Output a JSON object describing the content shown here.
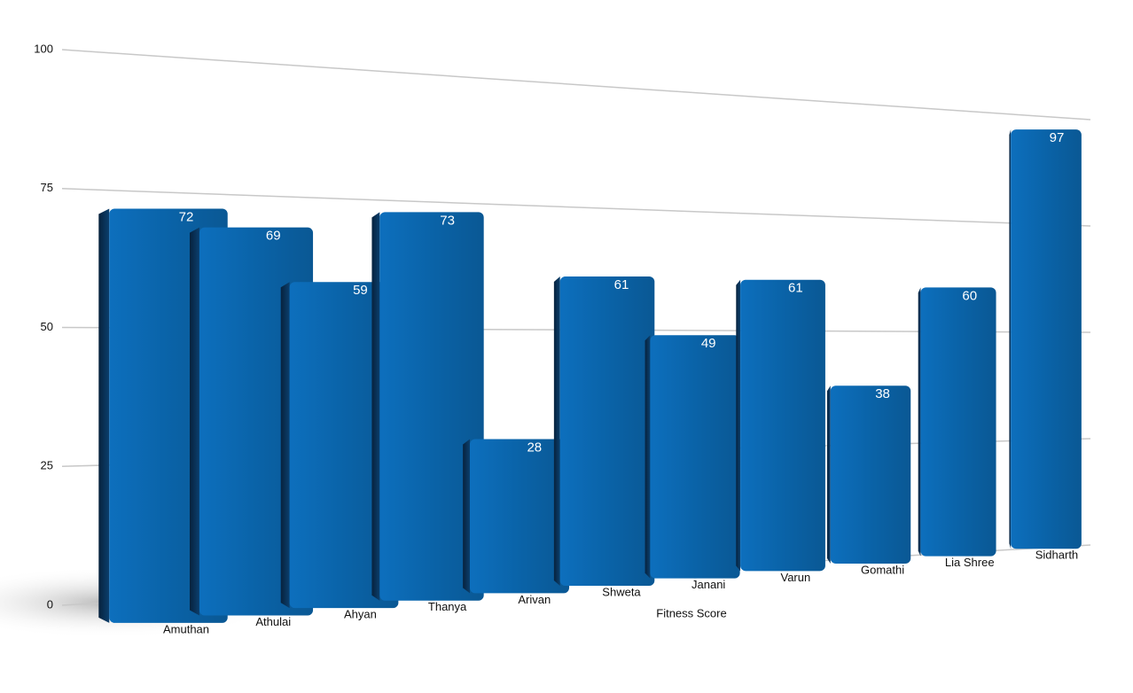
{
  "chart_data": {
    "type": "bar",
    "x_label": "Fitness Score",
    "categories": [
      "Amuthan",
      "Athulai",
      "Ahyan",
      "Thanya",
      "Arivan",
      "Shweta",
      "Janani",
      "Varun",
      "Gomathi",
      "Lia Shree",
      "Sidharth"
    ],
    "values": [
      72,
      69,
      59,
      73,
      28,
      61,
      49,
      61,
      38,
      60,
      97
    ],
    "color": "#0a63a8",
    "ylim": [
      0,
      100
    ],
    "yticks": [
      0,
      25,
      50,
      75,
      100
    ],
    "grid": true
  }
}
